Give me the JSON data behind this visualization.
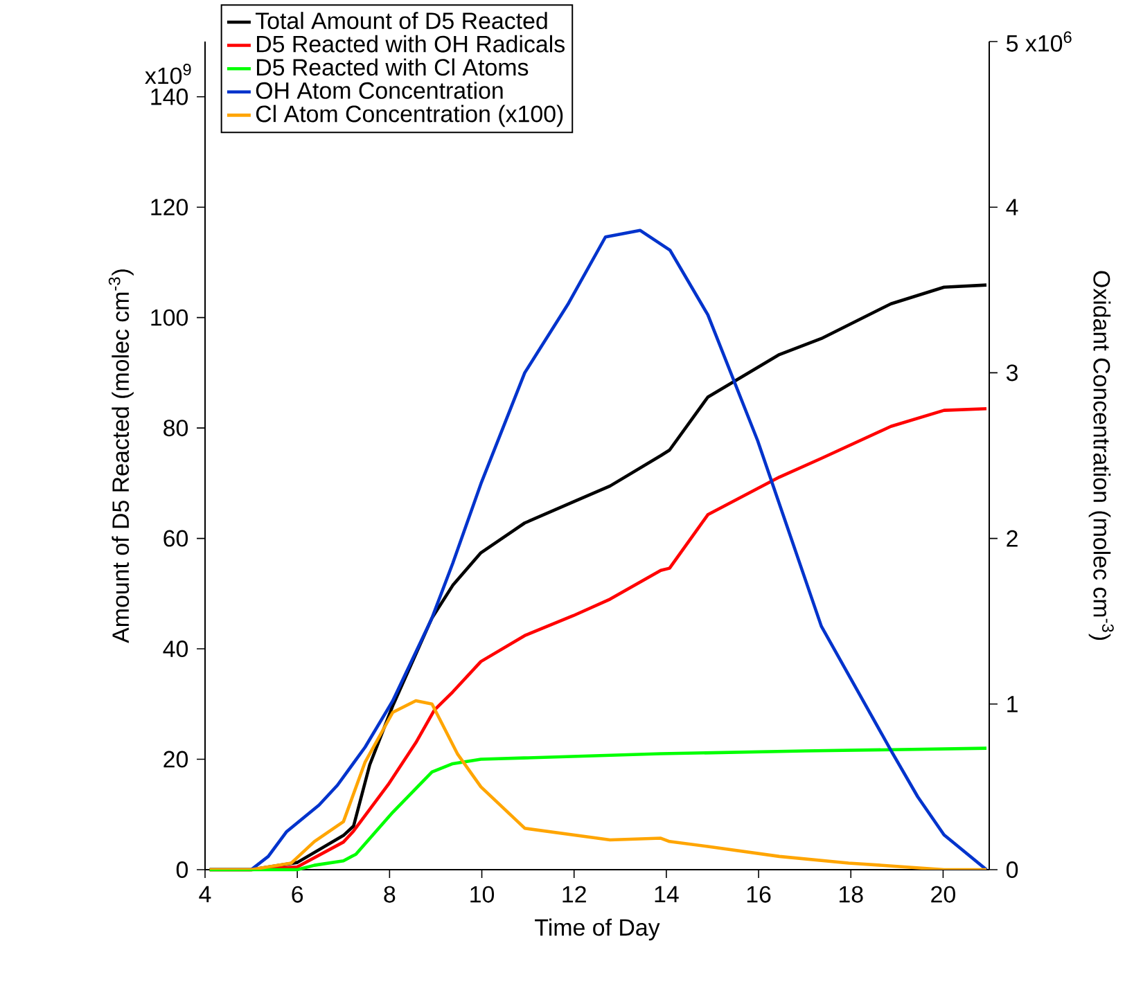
{
  "chart_data": {
    "type": "line",
    "xlabel": "Time of Day",
    "ylabel": "Amount of D5 Reacted (molec cm$^{-3}$)",
    "y2label": "Oxidant Concentration (molec cm$^{-3}$)",
    "xlim": [
      4,
      21
    ],
    "xticks": [
      4,
      6,
      8,
      10,
      12,
      14,
      16,
      18,
      20
    ],
    "ylim": [
      0,
      150
    ],
    "yticks": [
      0,
      20,
      40,
      60,
      80,
      100,
      120,
      140
    ],
    "y2lim": [
      0,
      5
    ],
    "y2ticks": [
      0,
      1,
      2,
      3,
      4,
      5
    ],
    "annotations": [
      "x10$^{9}$",
      "x10$^{6}$"
    ],
    "legend": "top left",
    "series": [
      {
        "name": "Total Amount of D5 Reacted",
        "color": "#000000",
        "x": [
          4.1,
          5,
          6,
          7,
          7.22,
          7.57,
          8.07,
          8.92,
          9.37,
          9.98,
          10.93,
          11.98,
          12.78,
          13.88,
          14.07,
          14.9,
          16.45,
          17.36,
          18.87,
          20.02,
          20.94
        ],
        "values": [
          0,
          0,
          1.3,
          6.2,
          7.9,
          19,
          29.7,
          45.6,
          51.5,
          57.4,
          62.8,
          66.6,
          69.5,
          75,
          76,
          85.6,
          93.3,
          96.2,
          102.5,
          105.5,
          105.9
        ]
      },
      {
        "name": "D5 Reacted with OH Radicals",
        "color": "#ff0000",
        "x": [
          4.1,
          5,
          6,
          7,
          7.22,
          7.97,
          8.57,
          8.97,
          9.37,
          9.98,
          10.93,
          11.98,
          12.78,
          13.88,
          14.07,
          14.9,
          16.45,
          17.36,
          18.87,
          20.02,
          20.94
        ],
        "values": [
          0,
          0,
          0.5,
          5,
          7,
          15.4,
          23,
          28.9,
          32.2,
          37.7,
          42.4,
          46,
          49,
          54.2,
          54.6,
          64.3,
          71.1,
          74.5,
          80.3,
          83.2,
          83.5
        ]
      },
      {
        "name": "D5 Reacted with Cl Atoms",
        "color": "#00ff00",
        "x": [
          4.1,
          5,
          6,
          6.37,
          7,
          7.27,
          8.07,
          8.92,
          9.37,
          9.98,
          13.88,
          17,
          20.94
        ],
        "values": [
          0,
          0,
          0,
          0.8,
          1.6,
          2.8,
          10.4,
          17.7,
          19.2,
          20,
          21,
          21.5,
          22
        ]
      },
      {
        "name": "OH Atom Concentration",
        "color": "#0033cc",
        "axis": "y2",
        "x": [
          4.1,
          5,
          5.37,
          5.77,
          6.47,
          6.87,
          7.47,
          8.07,
          8.92,
          9.37,
          9.98,
          10.93,
          11.88,
          12.68,
          13.43,
          14.08,
          14.9,
          15.98,
          17.36,
          18.87,
          19.45,
          20.02,
          20.94
        ],
        "values": [
          0,
          0,
          0.08,
          0.23,
          0.39,
          0.51,
          0.74,
          1.02,
          1.52,
          1.85,
          2.33,
          3.0,
          3.42,
          3.82,
          3.86,
          3.74,
          3.35,
          2.59,
          1.47,
          0.72,
          0.44,
          0.21,
          0
        ]
      },
      {
        "name": "Cl Atom Concentration (x100)",
        "color": "#ffa500",
        "axis": "y2",
        "x": [
          4.1,
          5,
          5.87,
          6.37,
          7,
          7.47,
          8.07,
          8.57,
          8.92,
          9.47,
          9.98,
          10.93,
          12.78,
          13.88,
          14.07,
          14.9,
          16.45,
          17.95,
          19,
          20.02,
          20.94
        ],
        "values": [
          0,
          0,
          0.04,
          0.17,
          0.29,
          0.65,
          0.95,
          1.02,
          1.0,
          0.7,
          0.5,
          0.25,
          0.18,
          0.19,
          0.17,
          0.14,
          0.08,
          0.04,
          0.02,
          0,
          0
        ]
      }
    ]
  }
}
